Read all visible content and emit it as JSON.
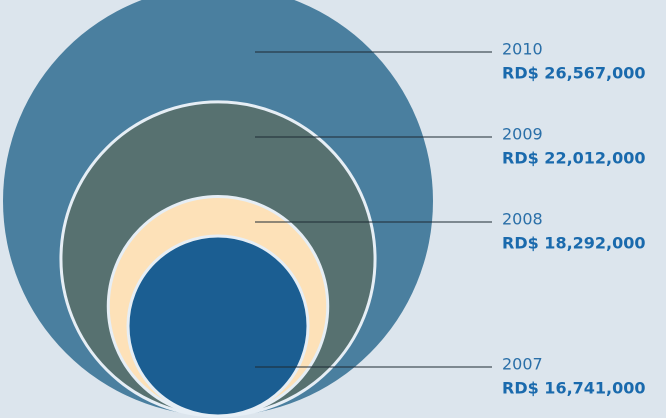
{
  "chart_data": {
    "type": "nested_circles",
    "categories": [
      "2010",
      "2009",
      "2008",
      "2007"
    ],
    "values": [
      26567000,
      22012000,
      18292000,
      16741000
    ],
    "value_labels": [
      "RD$ 26,567,000",
      "RD$ 22,012,000",
      "RD$ 18,292,000",
      "RD$ 16,741,000"
    ],
    "colors": [
      "#4a7f9f",
      "#577170",
      "#fde1b8",
      "#1b5e92"
    ]
  }
}
